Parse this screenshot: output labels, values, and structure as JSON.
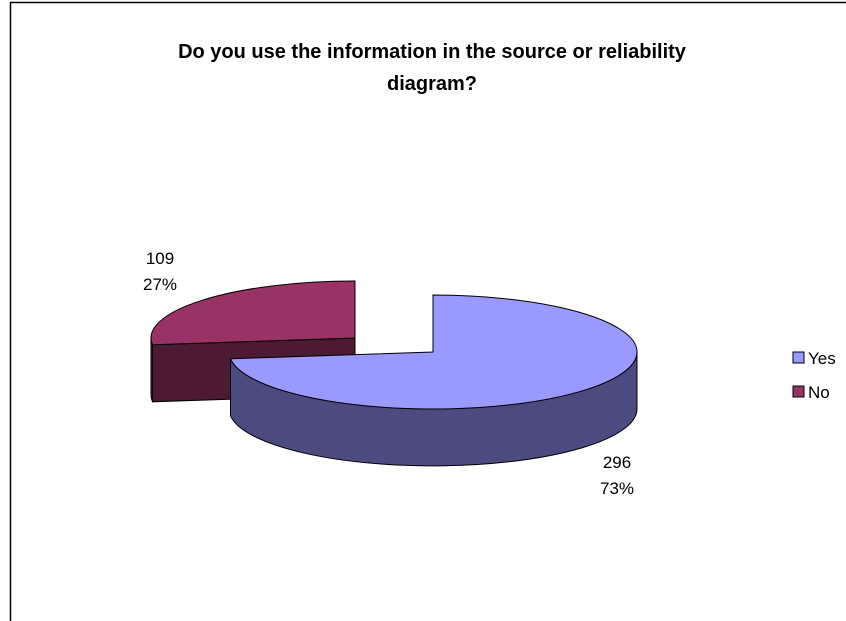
{
  "chart_data": {
    "type": "pie",
    "style": "3d-exploded",
    "title": "Do you use the information in the source or reliability diagram?",
    "title_lines": [
      "Do you use the information in the source or reliability",
      "diagram?"
    ],
    "categories": [
      "Yes",
      "No"
    ],
    "values": [
      296,
      109
    ],
    "percent_labels": [
      "73%",
      "27%"
    ],
    "colors": {
      "Yes": "#9999ff",
      "Yes_side": "#4b4b80",
      "No": "#993366",
      "No_side": "#4d1a33"
    },
    "legend_position": "right"
  }
}
